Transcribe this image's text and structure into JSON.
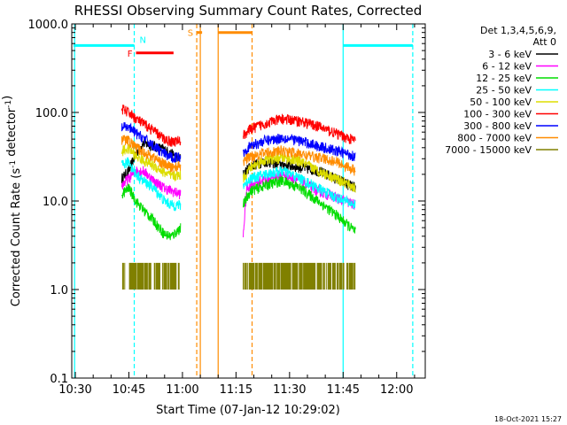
{
  "chart_data": {
    "type": "line",
    "title": "RHESSI Observing Summary Count Rates, Corrected",
    "xlabel": "Start Time (07-Jan-12 10:29:02)",
    "ylabel": "Corrected Count Rate (s",
    "ylabel_sup": "-1",
    "ylabel_mid": " detector",
    "ylabel_sup2": "-1",
    "ylabel_end": ")",
    "yscale": "log",
    "ylim": [
      0.1,
      1000.0
    ],
    "xlim_minutes": [
      29.0,
      128.0
    ],
    "x_ticks": [
      {
        "label": "10:30",
        "min": 30
      },
      {
        "label": "10:45",
        "min": 45
      },
      {
        "label": "11:00",
        "min": 60
      },
      {
        "label": "11:15",
        "min": 75
      },
      {
        "label": "11:30",
        "min": 90
      },
      {
        "label": "11:45",
        "min": 105
      },
      {
        "label": "12:00",
        "min": 120
      }
    ],
    "y_ticks": [
      {
        "label": "0.1",
        "value": 0.1
      },
      {
        "label": "1.0",
        "value": 1.0
      },
      {
        "label": "10.0",
        "value": 10.0
      },
      {
        "label": "100.0",
        "value": 100.0
      },
      {
        "label": "1000.0",
        "value": 1000.0
      }
    ],
    "legend": {
      "placement": "top-right",
      "header1": "Det 1,3,4,5,6,9,",
      "header2": "Att 0",
      "entries": [
        {
          "label": "3 - 6 keV",
          "color": "#000000"
        },
        {
          "label": "6 - 12 keV",
          "color": "#ff00ff"
        },
        {
          "label": "12 - 25 keV",
          "color": "#00dd00"
        },
        {
          "label": "25 - 50 keV",
          "color": "#00ffff"
        },
        {
          "label": "50 - 100 keV",
          "color": "#dddd00"
        },
        {
          "label": "100 - 300 keV",
          "color": "#ff0000"
        },
        {
          "label": "300 - 800 keV",
          "color": "#0000ff"
        },
        {
          "label": "800 - 7000 keV",
          "color": "#ff8c00"
        },
        {
          "label": "7000 - 15000 keV",
          "color": "#808000"
        }
      ]
    },
    "segments": [
      {
        "start": 43.0,
        "end": 59.5
      },
      {
        "start": 76.5,
        "end": 108.5
      }
    ],
    "series": [
      {
        "name": "3 - 6 keV",
        "color": "#000000",
        "seg1": [
          [
            43,
            18
          ],
          [
            45,
            22
          ],
          [
            47,
            35
          ],
          [
            49,
            45
          ],
          [
            52,
            42
          ],
          [
            55,
            38
          ],
          [
            57,
            34
          ],
          [
            59.5,
            30
          ]
        ],
        "seg2": [
          [
            77,
            20
          ],
          [
            79,
            25
          ],
          [
            83,
            28
          ],
          [
            88,
            26
          ],
          [
            93,
            24
          ],
          [
            98,
            22
          ],
          [
            103,
            18
          ],
          [
            108.5,
            14
          ]
        ]
      },
      {
        "name": "6 - 12 keV",
        "color": "#ff00ff",
        "seg1": [
          [
            43,
            15
          ],
          [
            45,
            18
          ],
          [
            47,
            22
          ],
          [
            49,
            22
          ],
          [
            52,
            17
          ],
          [
            55,
            14
          ],
          [
            57,
            13
          ],
          [
            59.5,
            12
          ]
        ],
        "seg2": [
          [
            77,
            4
          ],
          [
            78,
            14
          ],
          [
            80,
            16
          ],
          [
            84,
            18
          ],
          [
            88,
            20
          ],
          [
            93,
            17
          ],
          [
            98,
            13
          ],
          [
            103,
            11
          ],
          [
            108.5,
            9
          ]
        ]
      },
      {
        "name": "12 - 25 keV",
        "color": "#00dd00",
        "seg1": [
          [
            43,
            12
          ],
          [
            45,
            14
          ],
          [
            47,
            10
          ],
          [
            49,
            8
          ],
          [
            52,
            6
          ],
          [
            55,
            4.2
          ],
          [
            57,
            4
          ],
          [
            59.5,
            5
          ]
        ],
        "seg2": [
          [
            77,
            9
          ],
          [
            79,
            13
          ],
          [
            83,
            15
          ],
          [
            88,
            17
          ],
          [
            93,
            14
          ],
          [
            98,
            10
          ],
          [
            103,
            7
          ],
          [
            108.5,
            4.5
          ]
        ]
      },
      {
        "name": "25 - 50 keV",
        "color": "#00ffff",
        "seg1": [
          [
            43,
            25
          ],
          [
            45,
            28
          ],
          [
            47,
            20
          ],
          [
            49,
            17
          ],
          [
            52,
            14
          ],
          [
            55,
            10
          ],
          [
            57,
            9
          ],
          [
            59.5,
            9
          ]
        ],
        "seg2": [
          [
            77,
            15
          ],
          [
            79,
            18
          ],
          [
            83,
            20
          ],
          [
            88,
            22
          ],
          [
            93,
            18
          ],
          [
            98,
            14
          ],
          [
            103,
            11
          ],
          [
            108.5,
            9
          ]
        ]
      },
      {
        "name": "50 - 100 keV",
        "color": "#dddd00",
        "seg1": [
          [
            43,
            37
          ],
          [
            45,
            39
          ],
          [
            47,
            32
          ],
          [
            49,
            29
          ],
          [
            52,
            25
          ],
          [
            55,
            21
          ],
          [
            57,
            19
          ],
          [
            59.5,
            20
          ]
        ],
        "seg2": [
          [
            77,
            18
          ],
          [
            79,
            24
          ],
          [
            83,
            29
          ],
          [
            88,
            31
          ],
          [
            93,
            28
          ],
          [
            98,
            22
          ],
          [
            103,
            18
          ],
          [
            108.5,
            14
          ]
        ]
      },
      {
        "name": "100 - 300 keV",
        "color": "#ff0000",
        "seg1": [
          [
            43,
            110
          ],
          [
            45,
            100
          ],
          [
            47,
            85
          ],
          [
            49,
            75
          ],
          [
            52,
            62
          ],
          [
            55,
            50
          ],
          [
            57,
            47
          ],
          [
            59.5,
            48
          ]
        ],
        "seg2": [
          [
            77,
            55
          ],
          [
            79,
            65
          ],
          [
            83,
            75
          ],
          [
            88,
            85
          ],
          [
            93,
            80
          ],
          [
            98,
            70
          ],
          [
            103,
            58
          ],
          [
            108.5,
            48
          ]
        ]
      },
      {
        "name": "300 - 800 keV",
        "color": "#0000ff",
        "seg1": [
          [
            43,
            68
          ],
          [
            45,
            68
          ],
          [
            47,
            58
          ],
          [
            49,
            52
          ],
          [
            52,
            42
          ],
          [
            55,
            34
          ],
          [
            57,
            31
          ],
          [
            59.5,
            32
          ]
        ],
        "seg2": [
          [
            77,
            35
          ],
          [
            79,
            42
          ],
          [
            83,
            48
          ],
          [
            88,
            52
          ],
          [
            93,
            48
          ],
          [
            98,
            42
          ],
          [
            103,
            37
          ],
          [
            108.5,
            32
          ]
        ]
      },
      {
        "name": "800 - 7000 keV",
        "color": "#ff8c00",
        "seg1": [
          [
            43,
            50
          ],
          [
            45,
            48
          ],
          [
            47,
            40
          ],
          [
            49,
            36
          ],
          [
            52,
            31
          ],
          [
            55,
            26
          ],
          [
            57,
            24
          ],
          [
            59.5,
            25
          ]
        ],
        "seg2": [
          [
            77,
            28
          ],
          [
            79,
            32
          ],
          [
            83,
            35
          ],
          [
            88,
            37
          ],
          [
            93,
            34
          ],
          [
            98,
            31
          ],
          [
            103,
            28
          ],
          [
            108.5,
            22
          ]
        ]
      },
      {
        "name": "7000 - 15000 keV",
        "color": "#808000",
        "seg1": [
          [
            43,
            1.0
          ],
          [
            59.5,
            1.0
          ]
        ],
        "seg2": [
          [
            77,
            1.0
          ],
          [
            108.5,
            1.0
          ]
        ]
      }
    ],
    "flag_bars": [
      {
        "label": "F",
        "color": "#ff0000",
        "start": 47,
        "end": 57.5,
        "level": 470
      },
      {
        "label": "N",
        "color": "#00ffff",
        "start": 29.5,
        "end": 46.5,
        "level": 570
      },
      {
        "label": "",
        "color": "#00ffff",
        "start": 105,
        "end": 124.5,
        "level": 570
      },
      {
        "label": "S",
        "color": "#ff8c00",
        "start": 64,
        "end": 65.5,
        "level": 800
      },
      {
        "label": "",
        "color": "#ff8c00",
        "start": 70,
        "end": 79.5,
        "level": 800
      }
    ],
    "vlines": [
      {
        "min": 29.8,
        "color": "#00ffff",
        "style": "solid"
      },
      {
        "min": 46.5,
        "color": "#00ffff",
        "style": "dashed"
      },
      {
        "min": 105.0,
        "color": "#00ffff",
        "style": "solid"
      },
      {
        "min": 124.5,
        "color": "#00ffff",
        "style": "dashed"
      },
      {
        "min": 64.0,
        "color": "#ff8c00",
        "style": "dashed"
      },
      {
        "min": 65.0,
        "color": "#ff8c00",
        "style": "solid"
      },
      {
        "min": 70.0,
        "color": "#ff8c00",
        "style": "solid"
      },
      {
        "min": 79.5,
        "color": "#ff8c00",
        "style": "dashed"
      }
    ],
    "footer_date": "18-Oct-2021 15:27"
  }
}
